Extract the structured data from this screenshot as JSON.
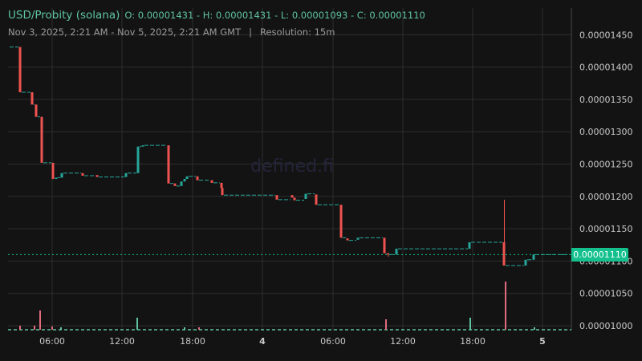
{
  "header": {
    "pair": "USD/Probity (solana)",
    "ohlc": "O: 0.00001431 - H: 0.00001431 - L: 0.00001093 - C: 0.00001110",
    "range": "Nov 3, 2025, 2:21 AM - Nov 5, 2025, 2:21 AM GMT",
    "separator": "|",
    "resolution": "Resolution: 15m"
  },
  "watermark": "defined.fi",
  "current_price_label": "0.00001110",
  "colors": {
    "up": "#26a69a",
    "down": "#ef5350",
    "vol_up": "#5fc4a3",
    "vol_down": "#e06b7d",
    "grid": "#2e2e2e",
    "background": "#131313",
    "price_line": "#13c08e"
  },
  "chart_data": {
    "type": "candlestick",
    "title": "USD/Probity (solana)",
    "xlabel": "",
    "ylabel": "",
    "ylim": [
      9.938e-06,
      1.468e-05
    ],
    "yticks": [
      "0.00001450",
      "0.00001400",
      "0.00001350",
      "0.00001300",
      "0.00001250",
      "0.00001200",
      "0.00001150",
      "0.00001100",
      "0.00001050",
      "0.00001000"
    ],
    "xticks": [
      "06:00",
      "12:00",
      "18:00",
      "4",
      "06:00",
      "12:00",
      "18:00",
      "5"
    ],
    "bold_xticks": [
      "4",
      "5"
    ],
    "current_price": 1.11e-05,
    "open": 1.431e-05,
    "high": 1.431e-05,
    "low": 1.093e-05,
    "close": 1.11e-05,
    "resolution": "15m",
    "candles_x_price": [
      {
        "x": 10,
        "o": 1431,
        "c": 1431
      },
      {
        "x": 25,
        "o": 1431,
        "c": 1361
      },
      {
        "x": 40,
        "o": 1361,
        "c": 1342
      },
      {
        "x": 45,
        "o": 1342,
        "c": 1323
      },
      {
        "x": 52,
        "o": 1323,
        "c": 1252
      },
      {
        "x": 66,
        "o": 1252,
        "c": 1227
      },
      {
        "x": 70,
        "o": 1227,
        "c": 1229
      },
      {
        "x": 77,
        "o": 1229,
        "c": 1236
      },
      {
        "x": 103,
        "o": 1236,
        "c": 1232
      },
      {
        "x": 121,
        "o": 1233,
        "c": 1230
      },
      {
        "x": 157,
        "o": 1230,
        "c": 1236
      },
      {
        "x": 172,
        "o": 1236,
        "c": 1277
      },
      {
        "x": 178,
        "o": 1277,
        "c": 1279
      },
      {
        "x": 210,
        "o": 1279,
        "c": 1220
      },
      {
        "x": 218,
        "o": 1220,
        "c": 1216
      },
      {
        "x": 226,
        "o": 1216,
        "c": 1223
      },
      {
        "x": 230,
        "o": 1223,
        "c": 1227
      },
      {
        "x": 233,
        "o": 1227,
        "c": 1231
      },
      {
        "x": 246,
        "o": 1231,
        "c": 1225
      },
      {
        "x": 264,
        "o": 1225,
        "c": 1221
      },
      {
        "x": 276,
        "o": 1221,
        "c": 1213
      },
      {
        "x": 277,
        "o": 1213,
        "c": 1202
      },
      {
        "x": 345,
        "o": 1202,
        "c": 1195
      },
      {
        "x": 364,
        "o": 1202,
        "c": 1198
      },
      {
        "x": 367,
        "o": 1198,
        "c": 1194
      },
      {
        "x": 381,
        "o": 1196,
        "c": 1204
      },
      {
        "x": 394,
        "o": 1203,
        "c": 1187
      },
      {
        "x": 425,
        "o": 1187,
        "c": 1136
      },
      {
        "x": 433,
        "o": 1135,
        "c": 1132
      },
      {
        "x": 446,
        "o": 1133,
        "c": 1136
      },
      {
        "x": 479,
        "o": 1136,
        "c": 1112
      },
      {
        "x": 483,
        "o": 1112,
        "c": 1110
      },
      {
        "x": 494,
        "o": 1110,
        "c": 1119
      },
      {
        "x": 585,
        "o": 1119,
        "c": 1129
      },
      {
        "x": 628,
        "o": 1129,
        "c": 1093
      },
      {
        "x": 655,
        "o": 1093,
        "c": 1102
      },
      {
        "x": 665,
        "o": 1102,
        "c": 1110
      }
    ],
    "volume_spikes": [
      {
        "x": 25,
        "h": 5,
        "dir": "down"
      },
      {
        "x": 43,
        "h": 5,
        "dir": "down"
      },
      {
        "x": 50,
        "h": 24,
        "dir": "down"
      },
      {
        "x": 65,
        "h": 4,
        "dir": "down"
      },
      {
        "x": 76,
        "h": 3,
        "dir": "up"
      },
      {
        "x": 171,
        "h": 15,
        "dir": "up"
      },
      {
        "x": 230,
        "h": 3,
        "dir": "up"
      },
      {
        "x": 248,
        "h": 3,
        "dir": "down"
      },
      {
        "x": 481,
        "h": 13,
        "dir": "down"
      },
      {
        "x": 586,
        "h": 15,
        "dir": "up"
      },
      {
        "x": 630,
        "h": 60,
        "dir": "down"
      },
      {
        "x": 666,
        "h": 3,
        "dir": "up"
      }
    ]
  }
}
